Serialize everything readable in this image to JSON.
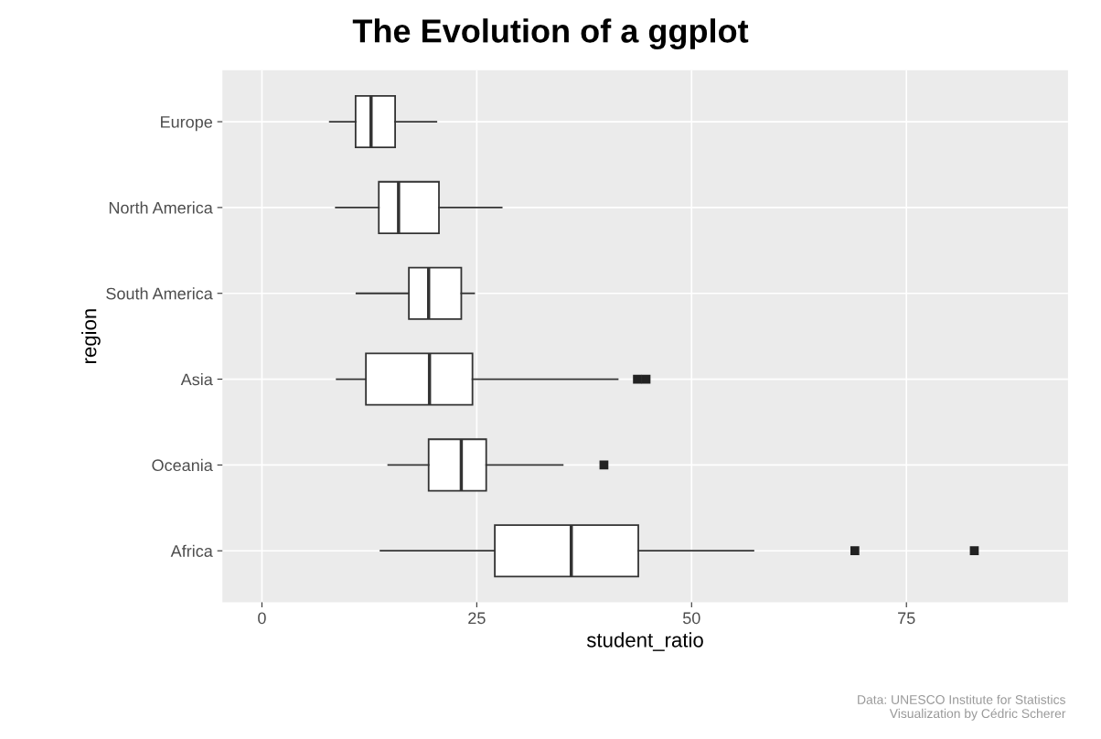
{
  "chart_data": {
    "type": "box",
    "title": "The Evolution of a ggplot",
    "xlabel": "student_ratio",
    "ylabel": "region",
    "orientation": "horizontal",
    "categories": [
      "Europe",
      "North America",
      "South America",
      "Asia",
      "Oceania",
      "Africa"
    ],
    "boxes": [
      {
        "low": 7.9,
        "q1": 10.9,
        "median": 12.7,
        "q3": 15.5,
        "high": 20.3
      },
      {
        "low": 8.6,
        "q1": 13.6,
        "median": 15.9,
        "q3": 20.6,
        "high": 27.9
      },
      {
        "low": 11.0,
        "q1": 17.1,
        "median": 19.4,
        "q3": 23.2,
        "high": 24.7
      },
      {
        "low": 8.7,
        "q1": 12.1,
        "median": 19.5,
        "q3": 24.5,
        "high": 41.4,
        "outliers": [
          43.7,
          44.7
        ]
      },
      {
        "low": 14.7,
        "q1": 19.4,
        "median": 23.2,
        "q3": 26.1,
        "high": 35.0,
        "outliers": [
          39.8
        ]
      },
      {
        "low": 13.8,
        "q1": 27.1,
        "median": 36.0,
        "q3": 43.8,
        "high": 57.2,
        "outliers": [
          69.0,
          82.9
        ]
      }
    ],
    "xlim": [
      -4.6,
      93.8
    ],
    "xticks": [
      0,
      25,
      50,
      75
    ],
    "grid": true,
    "annotations": [
      "Data: UNESCO Institute for Statistics\nVisualization by Cédric Scherer"
    ]
  }
}
